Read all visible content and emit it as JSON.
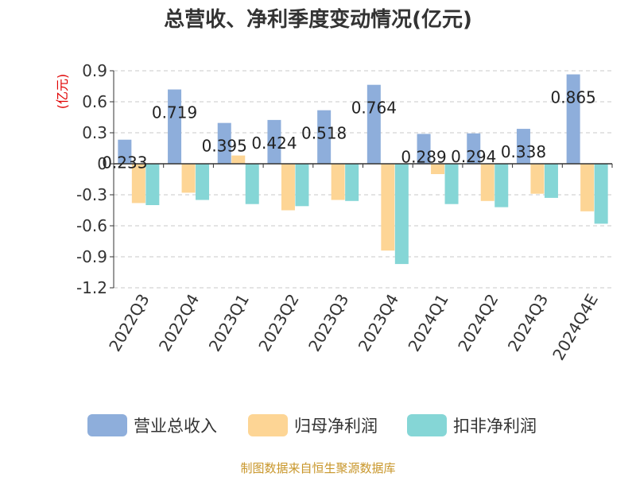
{
  "chart_data": {
    "type": "bar",
    "title": "总营收、净利季度变动情况(亿元)",
    "ylabel": "(亿元)",
    "xlabel": "",
    "categories": [
      "2022Q3",
      "2022Q4",
      "2023Q1",
      "2023Q2",
      "2023Q3",
      "2023Q4",
      "2024Q1",
      "2024Q2",
      "2024Q3",
      "2024Q4E"
    ],
    "ylim": [
      -1.2,
      0.9
    ],
    "yticks": [
      0.9,
      0.6,
      0.3,
      0,
      -0.3,
      -0.6,
      -0.9,
      -1.2
    ],
    "ytick_labels": [
      "0.9",
      "0.6",
      "0.3",
      "0",
      "-0.3",
      "-0.6",
      "-0.9",
      "-1.2"
    ],
    "grid": "horizontal dashed",
    "legend_position": "bottom",
    "series": [
      {
        "name": "营业总收入",
        "color": "#8eaedb",
        "values": [
          0.233,
          0.719,
          0.395,
          0.424,
          0.518,
          0.764,
          0.289,
          0.294,
          0.338,
          0.865
        ],
        "labels": [
          "0.233",
          "0.719",
          "0.395",
          "0.424",
          "0.518",
          "0.764",
          "0.289",
          "0.294",
          "0.338",
          "0.865"
        ]
      },
      {
        "name": "归母净利润",
        "color": "#fdd595",
        "values": [
          -0.38,
          -0.28,
          0.08,
          -0.45,
          -0.35,
          -0.84,
          -0.1,
          -0.36,
          -0.29,
          -0.46
        ]
      },
      {
        "name": "扣非净利润",
        "color": "#85d6d6",
        "values": [
          -0.4,
          -0.35,
          -0.39,
          -0.41,
          -0.36,
          -0.97,
          -0.39,
          -0.42,
          -0.33,
          -0.58
        ]
      }
    ]
  },
  "footer": {
    "source": "制图数据来自恒生聚源数据库"
  }
}
